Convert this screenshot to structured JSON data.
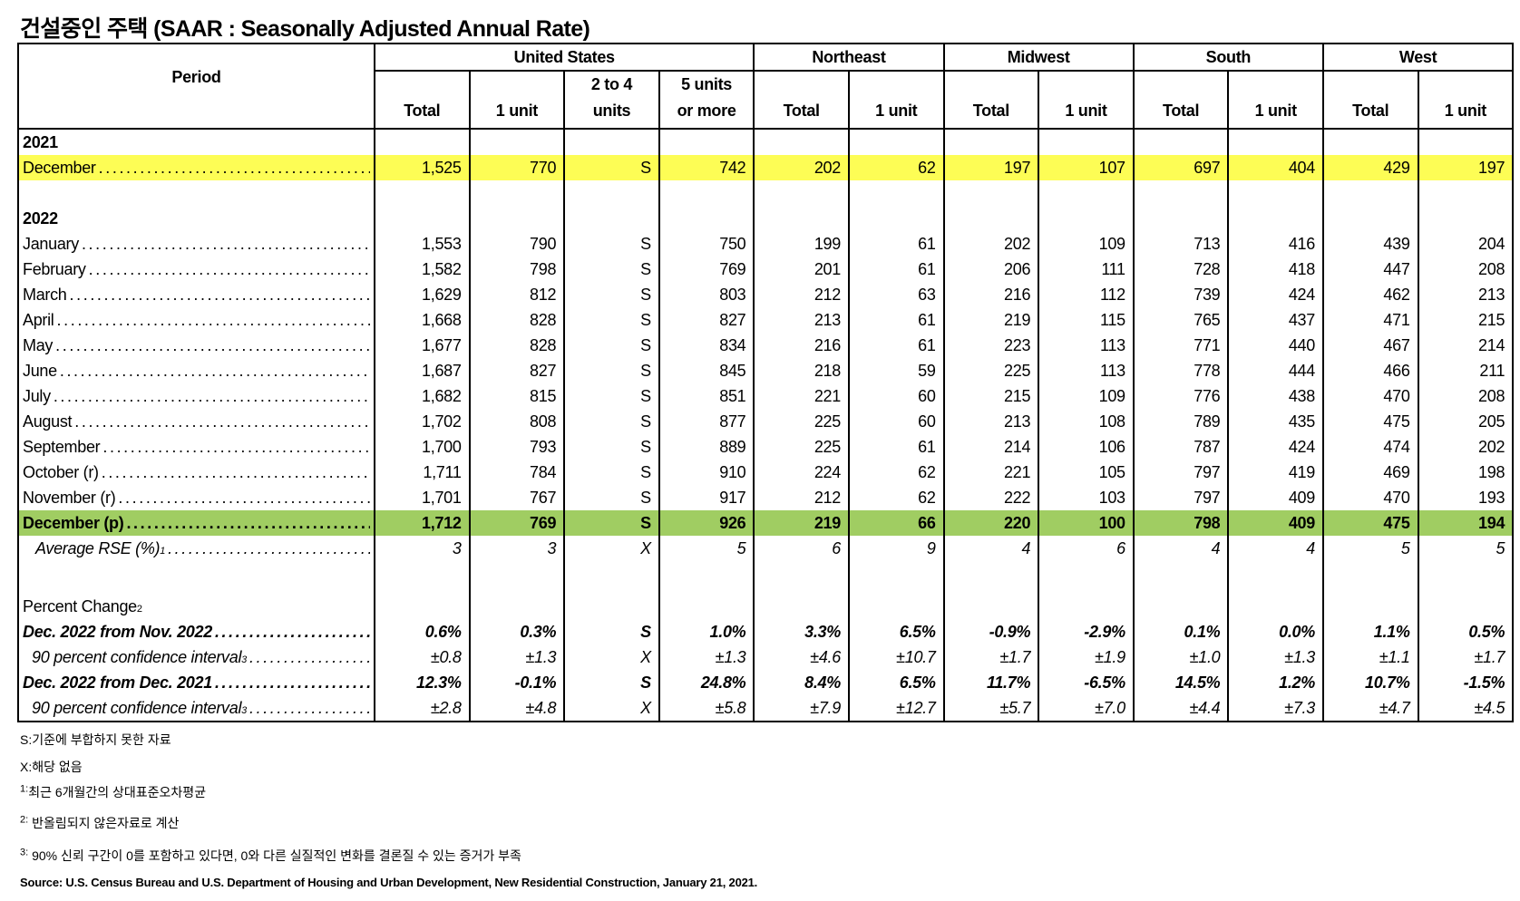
{
  "title": "건설중인 주택 (SAAR : Seasonally Adjusted Annual Rate)",
  "header": {
    "period": "Period",
    "groups": [
      {
        "label": "United States",
        "span": 4
      },
      {
        "label": "Northeast",
        "span": 2
      },
      {
        "label": "Midwest",
        "span": 2
      },
      {
        "label": "South",
        "span": 2
      },
      {
        "label": "West",
        "span": 2
      }
    ],
    "columns": [
      [
        "",
        "Total"
      ],
      [
        "",
        "1 unit"
      ],
      [
        "2 to 4",
        "units"
      ],
      [
        "5 units",
        "or more"
      ],
      [
        "",
        "Total"
      ],
      [
        "",
        "1 unit"
      ],
      [
        "",
        "Total"
      ],
      [
        "",
        "1 unit"
      ],
      [
        "",
        "Total"
      ],
      [
        "",
        "1 unit"
      ],
      [
        "",
        "Total"
      ],
      [
        "",
        "1 unit"
      ]
    ]
  },
  "highlight_colors": {
    "dec_2021": "#FDFD55",
    "dec_2022": "#A0CD62"
  },
  "rows": [
    {
      "type": "year",
      "label": "2021"
    },
    {
      "type": "data",
      "style": "yellow",
      "label": "December",
      "values": [
        "1,525",
        "770",
        "S",
        "742",
        "202",
        "62",
        "197",
        "107",
        "697",
        "404",
        "429",
        "197"
      ]
    },
    {
      "type": "blank"
    },
    {
      "type": "year",
      "label": "2022"
    },
    {
      "type": "data",
      "label": "January",
      "values": [
        "1,553",
        "790",
        "S",
        "750",
        "199",
        "61",
        "202",
        "109",
        "713",
        "416",
        "439",
        "204"
      ]
    },
    {
      "type": "data",
      "label": "February",
      "values": [
        "1,582",
        "798",
        "S",
        "769",
        "201",
        "61",
        "206",
        "111",
        "728",
        "418",
        "447",
        "208"
      ]
    },
    {
      "type": "data",
      "label": "March",
      "values": [
        "1,629",
        "812",
        "S",
        "803",
        "212",
        "63",
        "216",
        "112",
        "739",
        "424",
        "462",
        "213"
      ]
    },
    {
      "type": "data",
      "label": "April",
      "values": [
        "1,668",
        "828",
        "S",
        "827",
        "213",
        "61",
        "219",
        "115",
        "765",
        "437",
        "471",
        "215"
      ]
    },
    {
      "type": "data",
      "label": "May",
      "values": [
        "1,677",
        "828",
        "S",
        "834",
        "216",
        "61",
        "223",
        "113",
        "771",
        "440",
        "467",
        "214"
      ]
    },
    {
      "type": "data",
      "label": "June",
      "values": [
        "1,687",
        "827",
        "S",
        "845",
        "218",
        "59",
        "225",
        "113",
        "778",
        "444",
        "466",
        "211"
      ]
    },
    {
      "type": "data",
      "label": "July",
      "values": [
        "1,682",
        "815",
        "S",
        "851",
        "221",
        "60",
        "215",
        "109",
        "776",
        "438",
        "470",
        "208"
      ]
    },
    {
      "type": "data",
      "label": "August",
      "values": [
        "1,702",
        "808",
        "S",
        "877",
        "225",
        "60",
        "213",
        "108",
        "789",
        "435",
        "475",
        "205"
      ]
    },
    {
      "type": "data",
      "label": "September",
      "values": [
        "1,700",
        "793",
        "S",
        "889",
        "225",
        "61",
        "214",
        "106",
        "787",
        "424",
        "474",
        "202"
      ]
    },
    {
      "type": "data",
      "label": "October (r)",
      "values": [
        "1,711",
        "784",
        "S",
        "910",
        "224",
        "62",
        "221",
        "105",
        "797",
        "419",
        "469",
        "198"
      ]
    },
    {
      "type": "data",
      "label": "November (r)",
      "values": [
        "1,701",
        "767",
        "S",
        "917",
        "212",
        "62",
        "222",
        "103",
        "797",
        "409",
        "470",
        "193"
      ]
    },
    {
      "type": "data",
      "style": "green bold",
      "label": "December (p)",
      "values": [
        "1,712",
        "769",
        "S",
        "926",
        "219",
        "66",
        "220",
        "100",
        "798",
        "409",
        "475",
        "194"
      ]
    },
    {
      "type": "data",
      "style": "ital indent",
      "label": "Average RSE (%)",
      "sup": "1",
      "values": [
        "3",
        "3",
        "X",
        "5",
        "6",
        "9",
        "4",
        "6",
        "4",
        "4",
        "5",
        "5"
      ]
    },
    {
      "type": "blank2"
    },
    {
      "type": "plain",
      "label": "Percent Change",
      "sup": "2"
    },
    {
      "type": "data",
      "style": "bi",
      "label": "Dec. 2022 from Nov. 2022",
      "values": [
        "0.6%",
        "0.3%",
        "S",
        "1.0%",
        "3.3%",
        "6.5%",
        "-0.9%",
        "-2.9%",
        "0.1%",
        "0.0%",
        "1.1%",
        "0.5%"
      ]
    },
    {
      "type": "data",
      "style": "ital ci",
      "label": "90 percent confidence interval",
      "sup": "3",
      "values": [
        "±0.8",
        "±1.3",
        "X",
        "±1.3",
        "±4.6",
        "±10.7",
        "±1.7",
        "±1.9",
        "±1.0",
        "±1.3",
        "±1.1",
        "±1.7"
      ]
    },
    {
      "type": "data",
      "style": "bi",
      "label": "Dec. 2022 from Dec. 2021",
      "values": [
        "12.3%",
        "-0.1%",
        "S",
        "24.8%",
        "8.4%",
        "6.5%",
        "11.7%",
        "-6.5%",
        "14.5%",
        "1.2%",
        "10.7%",
        "-1.5%"
      ]
    },
    {
      "type": "data",
      "style": "ital ci",
      "label": "90 percent confidence interval",
      "sup": "3",
      "values": [
        "±2.8",
        "±4.8",
        "X",
        "±5.8",
        "±7.9",
        "±12.7",
        "±5.7",
        "±7.0",
        "±4.4",
        "±7.3",
        "±4.7",
        "±4.5"
      ]
    }
  ],
  "footnotes": [
    {
      "mark": "",
      "text": "S:기준에 부합하지 못한 자료"
    },
    {
      "mark": "",
      "text": "X:해당 없음"
    },
    {
      "mark": "1:",
      "text": "최근 6개월간의 상대표준오차평균"
    },
    {
      "mark": "2:",
      "text": " 반올림되지 않은자료로 계산"
    },
    {
      "mark": "3:",
      "text": " 90% 신뢰 구간이 0를 포함하고 있다면, 0와 다른 실질적인 변화를 결론질 수 있는 증거가 부족"
    }
  ],
  "source": "Source: U.S. Census Bureau and U.S. Department of Housing and Urban Development, New Residential Construction, January 21, 2021."
}
